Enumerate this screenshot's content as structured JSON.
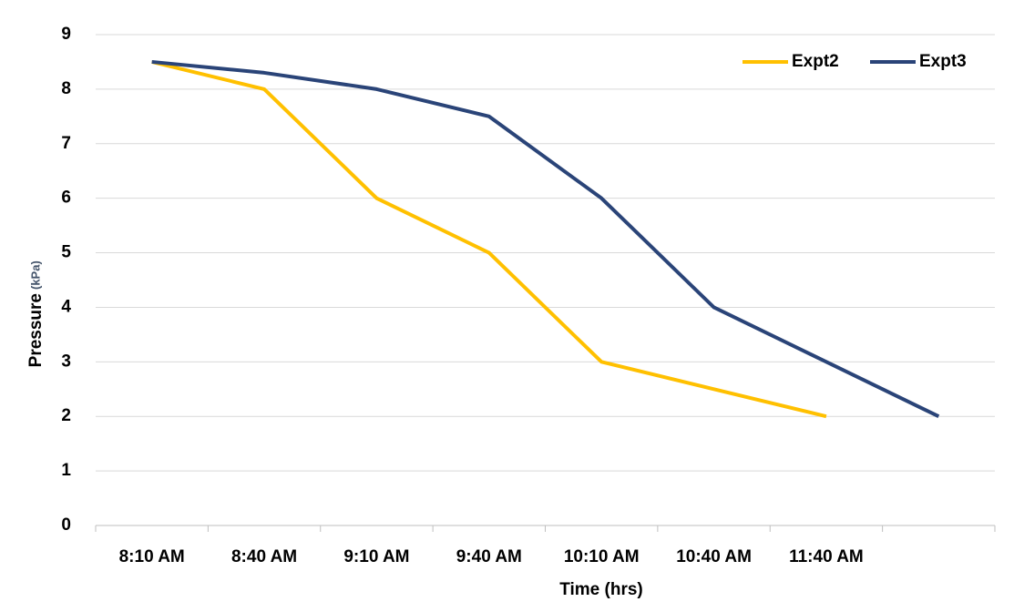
{
  "chart_data": {
    "type": "line",
    "x_label": "Time (hrs)",
    "y_label": "Pressure",
    "y_label_unit": "(kPa)",
    "categories": [
      "8:10 AM",
      "8:40 AM",
      "9:10 AM",
      "9:40 AM",
      "10:10 AM",
      "10:40 AM",
      "11:40 AM",
      null
    ],
    "series": [
      {
        "name": "Expt2",
        "color": "#ffc000",
        "values": [
          8.5,
          8,
          6,
          5,
          3,
          2.5,
          2,
          null
        ]
      },
      {
        "name": "Expt3",
        "color": "#2a4478",
        "values": [
          8.5,
          8.3,
          8,
          7.5,
          6,
          4,
          3,
          2
        ]
      }
    ],
    "ylim": [
      0,
      9
    ],
    "yticks": [
      0,
      1,
      2,
      3,
      4,
      5,
      6,
      7,
      8,
      9
    ],
    "grid": true,
    "legend": "top-right"
  }
}
